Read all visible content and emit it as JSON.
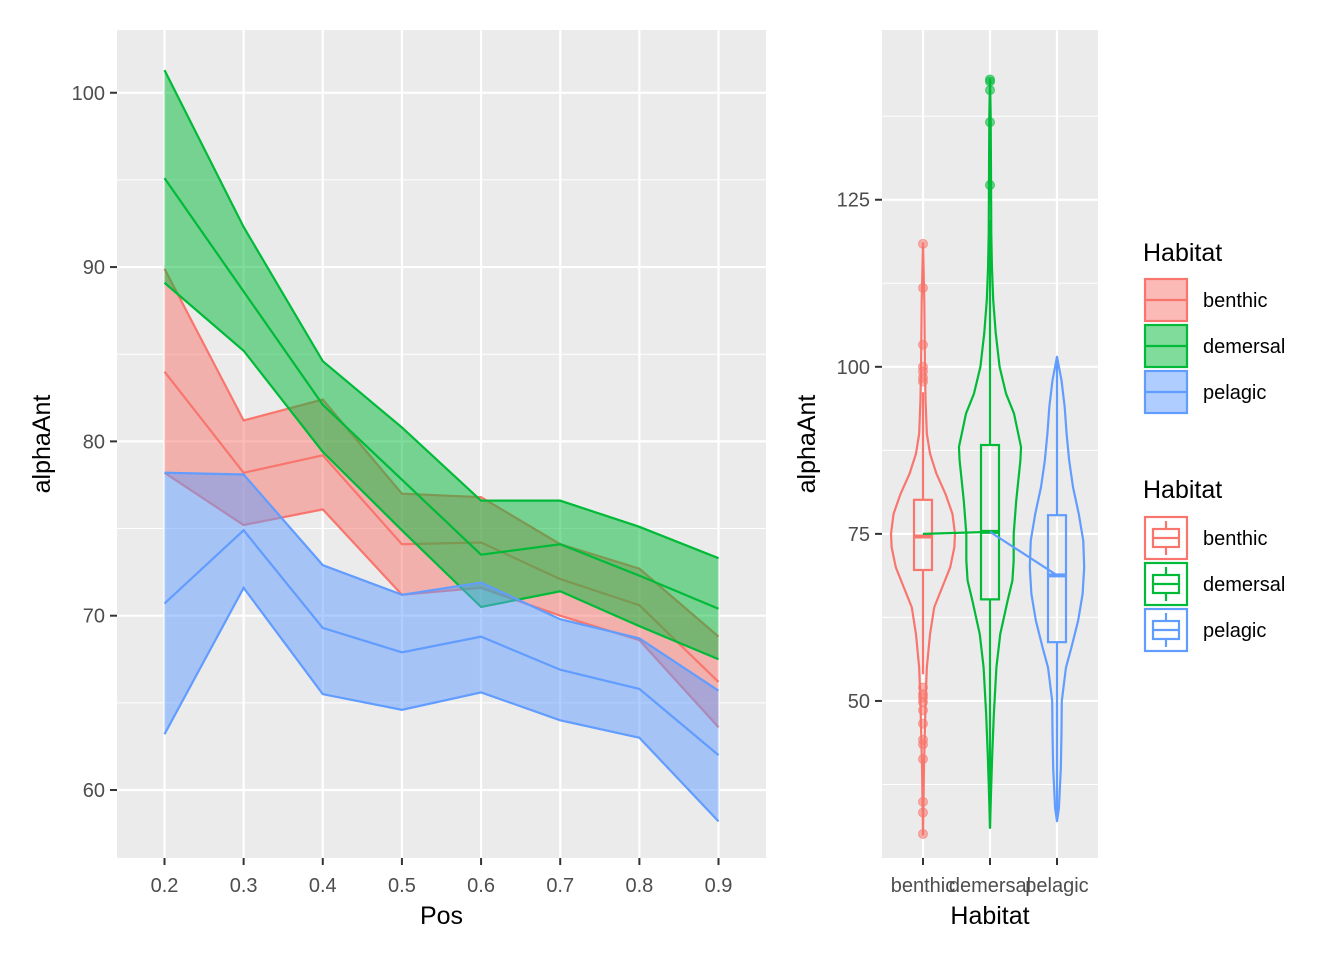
{
  "chart_data": [
    {
      "type": "area",
      "xlabel": "Pos",
      "ylabel": "alphaAnt",
      "xlim": [
        0.14,
        0.96
      ],
      "ylim": [
        56.1,
        103.6
      ],
      "x_ticks": [
        0.2,
        0.3,
        0.4,
        0.5,
        0.6,
        0.7,
        0.8,
        0.9
      ],
      "x_tick_labels": [
        "0.2",
        "0.3",
        "0.4",
        "0.5",
        "0.6",
        "0.7",
        "0.8",
        "0.9"
      ],
      "y_ticks": [
        60,
        70,
        80,
        90,
        100
      ],
      "y_tick_labels": [
        "60",
        "70",
        "80",
        "90",
        "100"
      ],
      "grid": true,
      "x": [
        0.2,
        0.3,
        0.4,
        0.5,
        0.6,
        0.7,
        0.8,
        0.9
      ],
      "series": [
        {
          "name": "benthic",
          "mean": [
            84.0,
            78.2,
            79.2,
            74.1,
            74.2,
            72.1,
            70.6,
            66.2
          ],
          "lower": [
            78.2,
            75.2,
            76.1,
            71.2,
            71.6,
            70.0,
            68.6,
            63.6
          ],
          "upper": [
            89.9,
            81.2,
            82.4,
            77.0,
            76.8,
            74.1,
            72.7,
            68.8
          ]
        },
        {
          "name": "demersal",
          "mean": [
            95.1,
            88.6,
            82.1,
            77.8,
            73.5,
            74.1,
            72.3,
            70.4
          ],
          "lower": [
            89.1,
            85.2,
            79.4,
            74.9,
            70.5,
            71.4,
            69.4,
            67.5
          ],
          "upper": [
            101.3,
            92.3,
            84.6,
            80.8,
            76.6,
            76.6,
            75.1,
            73.3
          ]
        },
        {
          "name": "pelagic",
          "mean": [
            70.7,
            74.9,
            69.3,
            67.9,
            68.8,
            66.9,
            65.8,
            62.0
          ],
          "lower": [
            63.2,
            71.6,
            65.5,
            64.6,
            65.6,
            64.0,
            63.0,
            58.2
          ],
          "upper": [
            78.2,
            78.1,
            72.9,
            71.2,
            71.9,
            69.8,
            68.7,
            65.7
          ]
        }
      ]
    },
    {
      "type": "violin+boxplot",
      "xlabel": "Habitat",
      "ylabel": "alphaAnt",
      "categories": [
        "benthic",
        "demersal",
        "pelagic"
      ],
      "ylim": [
        26.5,
        150.4
      ],
      "y_ticks": [
        50,
        75,
        100,
        125
      ],
      "y_tick_labels": [
        "50",
        "75",
        "100",
        "125"
      ],
      "grid": true,
      "violin_range": [
        [
          30.0,
          118.5
        ],
        [
          31.0,
          143.0
        ],
        [
          32.0,
          101.5
        ]
      ],
      "violin_profile": {
        "benthic": [
          [
            30.0,
            0.0
          ],
          [
            40.0,
            0.03
          ],
          [
            50.0,
            0.08
          ],
          [
            55.0,
            0.12
          ],
          [
            60.0,
            0.22
          ],
          [
            64.0,
            0.35
          ],
          [
            67.0,
            0.6
          ],
          [
            70.0,
            0.85
          ],
          [
            73.0,
            0.98
          ],
          [
            75.0,
            1.0
          ],
          [
            78.0,
            0.92
          ],
          [
            81.0,
            0.7
          ],
          [
            84.0,
            0.42
          ],
          [
            87.0,
            0.22
          ],
          [
            90.0,
            0.12
          ],
          [
            95.0,
            0.08
          ],
          [
            100.0,
            0.06
          ],
          [
            105.0,
            0.05
          ],
          [
            110.0,
            0.04
          ],
          [
            118.5,
            0.0
          ]
        ],
        "demersal": [
          [
            31.0,
            0.0
          ],
          [
            36.0,
            0.03
          ],
          [
            42.0,
            0.07
          ],
          [
            48.0,
            0.12
          ],
          [
            55.0,
            0.2
          ],
          [
            60.0,
            0.32
          ],
          [
            65.0,
            0.55
          ],
          [
            68.0,
            0.7
          ],
          [
            71.0,
            0.74
          ],
          [
            75.0,
            0.74
          ],
          [
            80.0,
            0.82
          ],
          [
            86.0,
            0.95
          ],
          [
            88.0,
            0.97
          ],
          [
            93.0,
            0.75
          ],
          [
            96.0,
            0.5
          ],
          [
            100.0,
            0.3
          ],
          [
            105.0,
            0.18
          ],
          [
            110.0,
            0.1
          ],
          [
            115.0,
            0.06
          ],
          [
            120.0,
            0.04
          ],
          [
            130.0,
            0.03
          ],
          [
            138.0,
            0.02
          ],
          [
            143.0,
            0.0
          ]
        ],
        "pelagic": [
          [
            32.0,
            0.0
          ],
          [
            34.0,
            0.06
          ],
          [
            40.0,
            0.12
          ],
          [
            45.0,
            0.14
          ],
          [
            50.0,
            0.15
          ],
          [
            55.0,
            0.28
          ],
          [
            58.0,
            0.45
          ],
          [
            62.0,
            0.66
          ],
          [
            66.0,
            0.8
          ],
          [
            70.0,
            0.85
          ],
          [
            74.0,
            0.82
          ],
          [
            78.0,
            0.68
          ],
          [
            82.0,
            0.5
          ],
          [
            86.0,
            0.38
          ],
          [
            90.0,
            0.3
          ],
          [
            94.0,
            0.24
          ],
          [
            98.0,
            0.14
          ],
          [
            101.5,
            0.0
          ]
        ]
      },
      "box": [
        {
          "name": "benthic",
          "q1": 69.6,
          "median": 74.6,
          "q3": 80.1,
          "whisker_low": 54.0,
          "whisker_high": 96.2
        },
        {
          "name": "demersal",
          "q1": 65.2,
          "median": 75.3,
          "q3": 88.3,
          "whisker_low": 31.0,
          "whisker_high": 122.0
        },
        {
          "name": "pelagic",
          "q1": 58.8,
          "median": 68.8,
          "q3": 77.8,
          "whisker_low": 32.5,
          "whisker_high": 101.0
        }
      ],
      "mean_line": [
        75.0,
        75.3,
        68.8
      ],
      "outliers": [
        {
          "name": "benthic",
          "values": [
            118.4,
            111.8,
            103.3,
            100.0,
            99.3,
            98.4,
            97.8,
            52.0,
            51.0,
            50.5,
            49.8,
            48.6,
            46.6,
            44.2,
            43.5,
            41.3,
            34.9,
            33.3,
            30.1
          ]
        },
        {
          "name": "demersal",
          "values": [
            143.0,
            142.7,
            141.4,
            136.6,
            127.2
          ]
        }
      ]
    }
  ],
  "legend": {
    "fill_title": "Habitat",
    "box_title": "Habitat",
    "items": [
      "benthic",
      "demersal",
      "pelagic"
    ]
  },
  "colors": {
    "benthic": "#F8766D",
    "demersal": "#00BA38",
    "pelagic": "#619CFF",
    "panel": "#EBEBEB",
    "grid": "#FFFFFF"
  }
}
